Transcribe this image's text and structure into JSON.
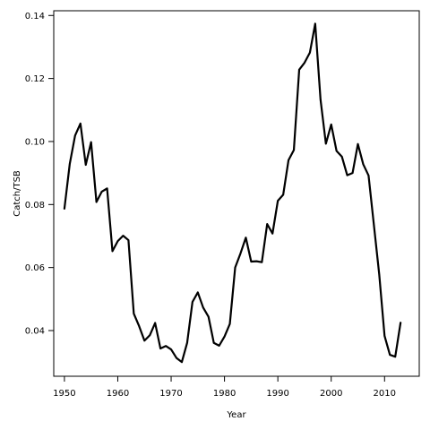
{
  "chart_data": {
    "type": "line",
    "title": "",
    "xlabel": "Year",
    "ylabel": "Catch/TSB",
    "xlim": [
      1948,
      2016.5
    ],
    "ylim": [
      0.0255,
      0.1415
    ],
    "grid": false,
    "x_ticks": [
      1950,
      1960,
      1970,
      1980,
      1990,
      2000,
      2010
    ],
    "y_ticks": [
      0.04,
      0.06,
      0.08,
      0.1,
      0.12,
      0.14
    ],
    "y_tick_labels": [
      "0.04",
      "0.06",
      "0.08",
      "0.10",
      "0.12",
      "0.14"
    ],
    "line_color": "#000000",
    "series": [
      {
        "x": [
          1950,
          1951,
          1952,
          1953,
          1954,
          1955,
          1956,
          1957,
          1958,
          1959,
          1960,
          1961,
          1962,
          1963,
          1964,
          1965,
          1966,
          1967,
          1968,
          1969,
          1970,
          1971,
          1972,
          1973,
          1974,
          1975,
          1976,
          1977,
          1978,
          1979,
          1980,
          1981,
          1982,
          1983,
          1984,
          1985,
          1986,
          1987,
          1988,
          1989,
          1990,
          1991,
          1992,
          1993,
          1994,
          1995,
          1996,
          1997,
          1998,
          1999,
          2000,
          2001,
          2002,
          2003,
          2004,
          2005,
          2006,
          2007,
          2008,
          2009,
          2010,
          2011,
          2012,
          2013
        ],
        "y": [
          0.0787,
          0.0929,
          0.1019,
          0.1057,
          0.0926,
          0.0998,
          0.0808,
          0.0841,
          0.0851,
          0.0652,
          0.0684,
          0.0701,
          0.0687,
          0.0454,
          0.0414,
          0.0368,
          0.0385,
          0.0424,
          0.0343,
          0.0351,
          0.034,
          0.0313,
          0.03,
          0.0361,
          0.0491,
          0.0521,
          0.0473,
          0.0444,
          0.0361,
          0.0352,
          0.0381,
          0.0421,
          0.06,
          0.0645,
          0.0695,
          0.0619,
          0.062,
          0.0617,
          0.0738,
          0.0708,
          0.0812,
          0.0831,
          0.0941,
          0.0973,
          0.1228,
          0.125,
          0.1282,
          0.1374,
          0.1133,
          0.0993,
          0.1054,
          0.097,
          0.0952,
          0.0893,
          0.09,
          0.0992,
          0.0928,
          0.0892,
          0.0735,
          0.0578,
          0.0383,
          0.0323,
          0.0317,
          0.0425
        ]
      }
    ]
  }
}
